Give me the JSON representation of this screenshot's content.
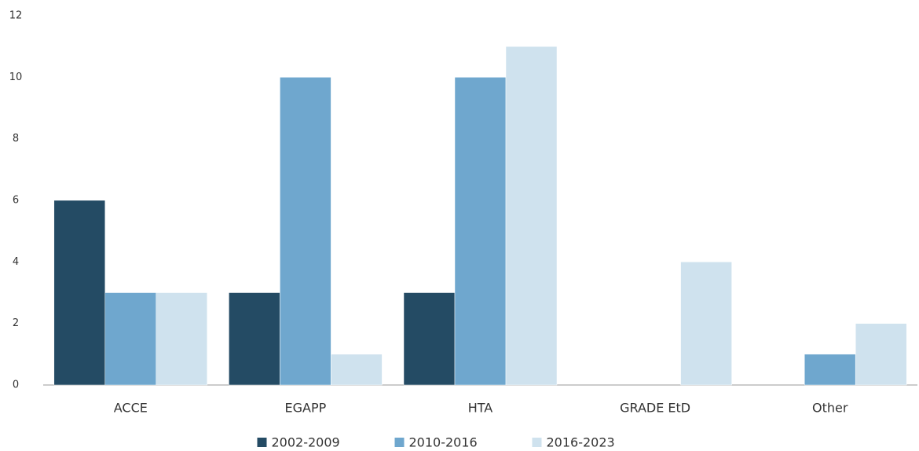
{
  "chart_data": {
    "type": "bar",
    "categories": [
      "ACCE",
      "EGAPP",
      "HTA",
      "GRADE EtD",
      "Other"
    ],
    "series": [
      {
        "name": "2002-2009",
        "color": "#244b64",
        "values": [
          6,
          3,
          3,
          0,
          0
        ]
      },
      {
        "name": "2010-2016",
        "color": "#6fa7ce",
        "values": [
          3,
          10,
          10,
          0,
          1
        ]
      },
      {
        "name": "2016-2023",
        "color": "#cfe2ee",
        "values": [
          3,
          1,
          11,
          4,
          2
        ]
      }
    ],
    "ylim": [
      0,
      12
    ],
    "yticks": [
      0,
      2,
      4,
      6,
      8,
      10,
      12
    ],
    "grid": false,
    "legend": "bottom"
  }
}
